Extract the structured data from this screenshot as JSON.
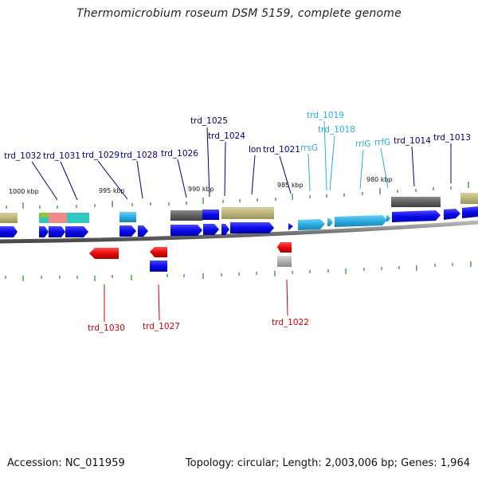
{
  "header": {
    "title": "Thermomicrobium roseum DSM 5159, complete genome"
  },
  "footer": {
    "accession": "Accession: NC_011959",
    "summary": "Topology: circular; Length: 2,003,006 bp; Genes: 1,964"
  },
  "map": {
    "position_labels": [
      "1000 kbp",
      "995 kbp",
      "990 kbp",
      "985 kbp",
      "980 kbp"
    ],
    "gene_labels": [
      "trd_1032",
      "trd_1031",
      "trd_1029",
      "trd_1028",
      "trd_1026",
      "trd_1025",
      "trd_1024",
      "lon",
      "trd_1021",
      "rrsG",
      "trd_1019",
      "trd_1018",
      "rrlG",
      "rrfG",
      "trd_1014",
      "trd_1013",
      "trd_1030",
      "trd_1027",
      "trd_1022"
    ]
  },
  "colors": {
    "forward_gene": "#0a0ae6",
    "reverse_gene": "#e60a0a",
    "rna_gene": "#2aaade",
    "rna_label": "#2aaade",
    "gene_label": "#00007a",
    "reverse_label": "#cc0000",
    "tick": "#1f8a1f",
    "backbone": "#7a7a7a",
    "grey_feature": "#606060",
    "khaki_feature": "#bdb67a",
    "teal_feature": "#2ec8c0",
    "salmon_feature": "#f08a86",
    "green_feature": "#8ac83a"
  }
}
